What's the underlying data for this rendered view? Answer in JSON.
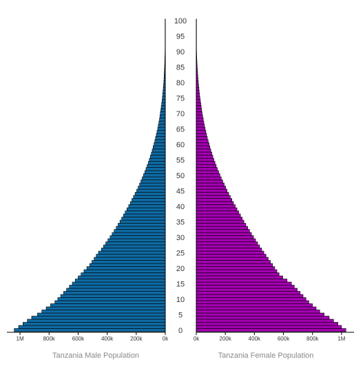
{
  "chart_data": {
    "type": "bar",
    "orientation": "horizontal-population-pyramid",
    "age_ticks": [
      0,
      5,
      10,
      15,
      20,
      25,
      30,
      35,
      40,
      45,
      50,
      55,
      60,
      65,
      70,
      75,
      80,
      85,
      90,
      95,
      100
    ],
    "left": {
      "label": "Tanzania Male Population",
      "color": "#0e6aa3",
      "ticks": [
        {
          "value": 1000000,
          "label": "1M"
        },
        {
          "value": 800000,
          "label": "800k"
        },
        {
          "value": 600000,
          "label": "600k"
        },
        {
          "value": 400000,
          "label": "400k"
        },
        {
          "value": 200000,
          "label": "200k"
        },
        {
          "value": 0,
          "label": "0k"
        }
      ]
    },
    "right": {
      "label": "Tanzania Female Population",
      "color": "#a300b0",
      "ticks": [
        {
          "value": 0,
          "label": "0k"
        },
        {
          "value": 200000,
          "label": "200k"
        },
        {
          "value": 400000,
          "label": "400k"
        },
        {
          "value": 600000,
          "label": "600k"
        },
        {
          "value": 800000,
          "label": "800k"
        },
        {
          "value": 1000000,
          "label": "1M"
        }
      ]
    },
    "xlim": [
      0,
      1100000
    ],
    "ages": [
      0,
      1,
      2,
      3,
      4,
      5,
      6,
      7,
      8,
      9,
      10,
      11,
      12,
      13,
      14,
      15,
      16,
      17,
      18,
      19,
      20,
      21,
      22,
      23,
      24,
      25,
      26,
      27,
      28,
      29,
      30,
      31,
      32,
      33,
      34,
      35,
      36,
      37,
      38,
      39,
      40,
      41,
      42,
      43,
      44,
      45,
      46,
      47,
      48,
      49,
      50,
      51,
      52,
      53,
      54,
      55,
      56,
      57,
      58,
      59,
      60,
      61,
      62,
      63,
      64,
      65,
      66,
      67,
      68,
      69,
      70,
      71,
      72,
      73,
      74,
      75,
      76,
      77,
      78,
      79,
      80,
      81,
      82,
      83,
      84,
      85,
      86,
      87,
      88,
      89,
      90,
      91,
      92,
      93,
      94,
      95,
      96,
      97,
      98,
      99,
      100
    ],
    "series": [
      {
        "name": "Tanzania Male Population",
        "values": [
          1040000,
          1010000,
          980000,
          950000,
          920000,
          880000,
          850000,
          820000,
          790000,
          760000,
          740000,
          720000,
          700000,
          680000,
          660000,
          640000,
          620000,
          600000,
          580000,
          560000,
          540000,
          520000,
          505000,
          490000,
          475000,
          460000,
          440000,
          425000,
          410000,
          395000,
          380000,
          366000,
          352000,
          338000,
          325000,
          312000,
          300000,
          288000,
          276000,
          264000,
          252000,
          241000,
          230000,
          219000,
          208000,
          197000,
          187000,
          177000,
          168000,
          159000,
          150000,
          141000,
          133000,
          125000,
          117000,
          110000,
          103000,
          96000,
          90000,
          84000,
          78000,
          72000,
          67000,
          62000,
          57000,
          52000,
          48000,
          44000,
          40000,
          37000,
          34000,
          31000,
          28000,
          25000,
          22000,
          20000,
          18000,
          16000,
          14000,
          12000,
          10000,
          9000,
          8000,
          7000,
          6000,
          5000,
          4000,
          3300,
          2700,
          2200,
          1800,
          1400,
          1100,
          900,
          700,
          500,
          400,
          300,
          200,
          150,
          100
        ]
      },
      {
        "name": "Tanzania Female Population",
        "values": [
          1030000,
          1000000,
          975000,
          945000,
          915000,
          880000,
          850000,
          825000,
          800000,
          775000,
          755000,
          735000,
          715000,
          695000,
          675000,
          655000,
          625000,
          595000,
          570000,
          555000,
          540000,
          525000,
          510000,
          495000,
          480000,
          465000,
          450000,
          436000,
          422000,
          408000,
          394000,
          380000,
          367000,
          354000,
          341000,
          328000,
          316000,
          304000,
          292000,
          280000,
          268000,
          256000,
          245000,
          234000,
          223000,
          212000,
          202000,
          192000,
          182000,
          172000,
          163000,
          154000,
          145000,
          137000,
          129000,
          121000,
          114000,
          107000,
          100000,
          94000,
          88000,
          82000,
          76000,
          71000,
          66000,
          61000,
          56000,
          52000,
          48000,
          44000,
          40000,
          37000,
          34000,
          31000,
          28000,
          25000,
          22000,
          20000,
          18000,
          16000,
          14000,
          12000,
          10500,
          9000,
          7500,
          6200,
          5000,
          4000,
          3200,
          2500,
          2000,
          1500,
          1200,
          900,
          700,
          500,
          400,
          300,
          200,
          150,
          100
        ]
      }
    ]
  }
}
